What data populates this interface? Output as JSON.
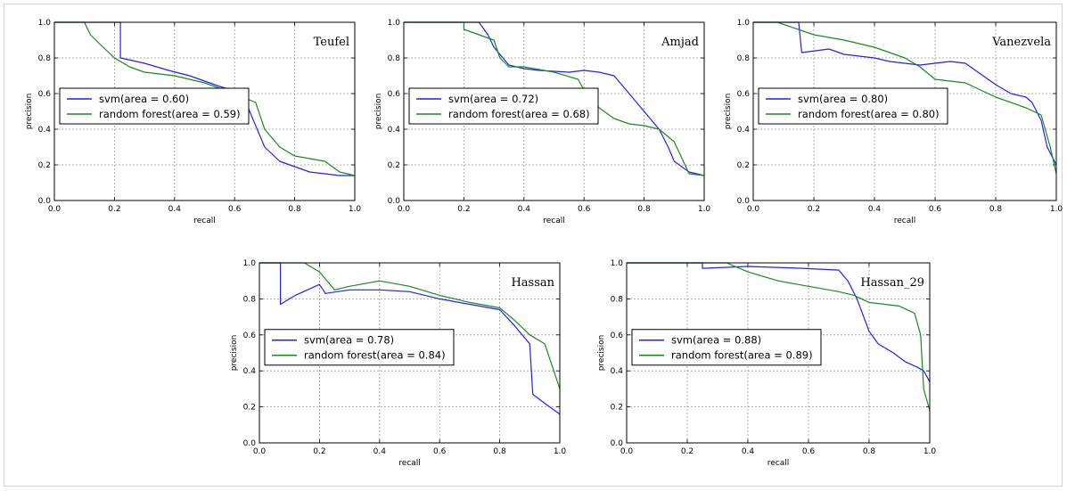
{
  "chart_data": [
    {
      "type": "line",
      "title": "Teufel",
      "xlabel": "recall",
      "ylabel": "precision",
      "xlim": [
        0,
        1
      ],
      "ylim": [
        0,
        1
      ],
      "x_ticks": [
        "0.0",
        "0.2",
        "0.4",
        "0.6",
        "0.8",
        "1.0"
      ],
      "y_ticks": [
        "0.0",
        "0.2",
        "0.4",
        "0.6",
        "0.8",
        "1.0"
      ],
      "grid": true,
      "legend": "center-left",
      "series": [
        {
          "name": "svm(area = 0.60)",
          "color": "#1f1fff",
          "points": [
            [
              0,
              1.0
            ],
            [
              0.22,
              1.0
            ],
            [
              0.22,
              0.8
            ],
            [
              0.3,
              0.77
            ],
            [
              0.38,
              0.73
            ],
            [
              0.45,
              0.7
            ],
            [
              0.55,
              0.64
            ],
            [
              0.63,
              0.6
            ],
            [
              0.65,
              0.5
            ],
            [
              0.7,
              0.3
            ],
            [
              0.75,
              0.22
            ],
            [
              0.8,
              0.19
            ],
            [
              0.85,
              0.16
            ],
            [
              0.9,
              0.15
            ],
            [
              0.95,
              0.14
            ],
            [
              1.0,
              0.14
            ]
          ]
        },
        {
          "name": "random forest(area = 0.59)",
          "color": "#1a8a1a",
          "points": [
            [
              0,
              1.0
            ],
            [
              0.1,
              1.0
            ],
            [
              0.12,
              0.93
            ],
            [
              0.15,
              0.88
            ],
            [
              0.2,
              0.8
            ],
            [
              0.25,
              0.75
            ],
            [
              0.3,
              0.72
            ],
            [
              0.4,
              0.7
            ],
            [
              0.5,
              0.66
            ],
            [
              0.6,
              0.6
            ],
            [
              0.67,
              0.55
            ],
            [
              0.7,
              0.4
            ],
            [
              0.75,
              0.3
            ],
            [
              0.8,
              0.25
            ],
            [
              0.9,
              0.22
            ],
            [
              0.95,
              0.16
            ],
            [
              1.0,
              0.14
            ]
          ]
        }
      ]
    },
    {
      "type": "line",
      "title": "Amjad",
      "xlabel": "recall",
      "ylabel": "precision",
      "xlim": [
        0,
        1
      ],
      "ylim": [
        0,
        1
      ],
      "x_ticks": [
        "0.0",
        "0.2",
        "0.4",
        "0.6",
        "0.8",
        "1.0"
      ],
      "y_ticks": [
        "0.0",
        "0.2",
        "0.4",
        "0.6",
        "0.8",
        "1.0"
      ],
      "grid": true,
      "legend": "center-left",
      "series": [
        {
          "name": "svm(area = 0.72)",
          "color": "#1f1fff",
          "points": [
            [
              0,
              1.0
            ],
            [
              0.25,
              1.0
            ],
            [
              0.28,
              0.93
            ],
            [
              0.3,
              0.86
            ],
            [
              0.35,
              0.76
            ],
            [
              0.4,
              0.74
            ],
            [
              0.45,
              0.73
            ],
            [
              0.55,
              0.72
            ],
            [
              0.6,
              0.73
            ],
            [
              0.65,
              0.72
            ],
            [
              0.7,
              0.7
            ],
            [
              0.75,
              0.6
            ],
            [
              0.8,
              0.5
            ],
            [
              0.85,
              0.4
            ],
            [
              0.88,
              0.3
            ],
            [
              0.9,
              0.22
            ],
            [
              0.95,
              0.16
            ],
            [
              1.0,
              0.14
            ]
          ]
        },
        {
          "name": "random forest(area = 0.68)",
          "color": "#1a8a1a",
          "points": [
            [
              0,
              1.0
            ],
            [
              0.2,
              1.0
            ],
            [
              0.2,
              0.96
            ],
            [
              0.3,
              0.9
            ],
            [
              0.32,
              0.8
            ],
            [
              0.35,
              0.75
            ],
            [
              0.4,
              0.75
            ],
            [
              0.5,
              0.72
            ],
            [
              0.58,
              0.68
            ],
            [
              0.6,
              0.62
            ],
            [
              0.65,
              0.52
            ],
            [
              0.7,
              0.46
            ],
            [
              0.75,
              0.43
            ],
            [
              0.8,
              0.42
            ],
            [
              0.85,
              0.4
            ],
            [
              0.9,
              0.33
            ],
            [
              0.95,
              0.15
            ],
            [
              1.0,
              0.14
            ]
          ]
        }
      ]
    },
    {
      "type": "line",
      "title": "Vanezvela",
      "xlabel": "recall",
      "ylabel": "precision",
      "xlim": [
        0,
        1
      ],
      "ylim": [
        0,
        1
      ],
      "x_ticks": [
        "0.0",
        "0.2",
        "0.4",
        "0.6",
        "0.8",
        "1.0"
      ],
      "y_ticks": [
        "0.0",
        "0.2",
        "0.4",
        "0.6",
        "0.8",
        "1.0"
      ],
      "grid": true,
      "legend": "center-left",
      "series": [
        {
          "name": "svm(area = 0.80)",
          "color": "#1f1fff",
          "points": [
            [
              0,
              1.0
            ],
            [
              0.15,
              1.0
            ],
            [
              0.16,
              0.83
            ],
            [
              0.25,
              0.85
            ],
            [
              0.3,
              0.82
            ],
            [
              0.4,
              0.8
            ],
            [
              0.45,
              0.78
            ],
            [
              0.55,
              0.76
            ],
            [
              0.65,
              0.78
            ],
            [
              0.7,
              0.77
            ],
            [
              0.8,
              0.65
            ],
            [
              0.85,
              0.6
            ],
            [
              0.9,
              0.58
            ],
            [
              0.92,
              0.55
            ],
            [
              0.95,
              0.45
            ],
            [
              0.97,
              0.3
            ],
            [
              1.0,
              0.2
            ]
          ]
        },
        {
          "name": "random forest(area = 0.80)",
          "color": "#1a8a1a",
          "points": [
            [
              0,
              1.0
            ],
            [
              0.08,
              1.0
            ],
            [
              0.2,
              0.93
            ],
            [
              0.3,
              0.9
            ],
            [
              0.4,
              0.86
            ],
            [
              0.5,
              0.8
            ],
            [
              0.55,
              0.75
            ],
            [
              0.6,
              0.68
            ],
            [
              0.7,
              0.66
            ],
            [
              0.8,
              0.58
            ],
            [
              0.9,
              0.52
            ],
            [
              0.95,
              0.48
            ],
            [
              0.98,
              0.3
            ],
            [
              1.0,
              0.15
            ]
          ]
        }
      ]
    },
    {
      "type": "line",
      "title": "Hassan",
      "xlabel": "recall",
      "ylabel": "precision",
      "xlim": [
        0,
        1
      ],
      "ylim": [
        0,
        1
      ],
      "x_ticks": [
        "0.0",
        "0.2",
        "0.4",
        "0.6",
        "0.8",
        "1.0"
      ],
      "y_ticks": [
        "0.0",
        "0.2",
        "0.4",
        "0.6",
        "0.8",
        "1.0"
      ],
      "grid": true,
      "legend": "center-left",
      "series": [
        {
          "name": "svm(area = 0.78)",
          "color": "#1f1fff",
          "points": [
            [
              0,
              1.0
            ],
            [
              0.07,
              1.0
            ],
            [
              0.07,
              0.77
            ],
            [
              0.12,
              0.82
            ],
            [
              0.2,
              0.88
            ],
            [
              0.22,
              0.83
            ],
            [
              0.3,
              0.85
            ],
            [
              0.4,
              0.85
            ],
            [
              0.5,
              0.84
            ],
            [
              0.6,
              0.8
            ],
            [
              0.7,
              0.77
            ],
            [
              0.8,
              0.74
            ],
            [
              0.85,
              0.65
            ],
            [
              0.9,
              0.55
            ],
            [
              0.91,
              0.27
            ],
            [
              0.95,
              0.22
            ],
            [
              1.0,
              0.16
            ]
          ]
        },
        {
          "name": "random forest(area = 0.84)",
          "color": "#1a8a1a",
          "points": [
            [
              0,
              1.0
            ],
            [
              0.15,
              1.0
            ],
            [
              0.2,
              0.95
            ],
            [
              0.25,
              0.85
            ],
            [
              0.3,
              0.87
            ],
            [
              0.4,
              0.9
            ],
            [
              0.5,
              0.87
            ],
            [
              0.6,
              0.82
            ],
            [
              0.7,
              0.78
            ],
            [
              0.8,
              0.75
            ],
            [
              0.85,
              0.68
            ],
            [
              0.9,
              0.6
            ],
            [
              0.95,
              0.55
            ],
            [
              0.98,
              0.4
            ],
            [
              1.0,
              0.3
            ]
          ]
        }
      ]
    },
    {
      "type": "line",
      "title": "Hassan_29",
      "xlabel": "recall",
      "ylabel": "precision",
      "xlim": [
        0,
        1
      ],
      "ylim": [
        0,
        1
      ],
      "x_ticks": [
        "0.0",
        "0.2",
        "0.4",
        "0.6",
        "0.8",
        "1.0"
      ],
      "y_ticks": [
        "0.0",
        "0.2",
        "0.4",
        "0.6",
        "0.8",
        "1.0"
      ],
      "grid": true,
      "legend": "center-left",
      "series": [
        {
          "name": "svm(area = 0.88)",
          "color": "#1f1fff",
          "points": [
            [
              0,
              1.0
            ],
            [
              0.25,
              1.0
            ],
            [
              0.25,
              0.97
            ],
            [
              0.4,
              0.98
            ],
            [
              0.58,
              0.97
            ],
            [
              0.7,
              0.96
            ],
            [
              0.73,
              0.9
            ],
            [
              0.76,
              0.8
            ],
            [
              0.8,
              0.62
            ],
            [
              0.83,
              0.55
            ],
            [
              0.88,
              0.5
            ],
            [
              0.92,
              0.45
            ],
            [
              0.96,
              0.42
            ],
            [
              0.98,
              0.4
            ],
            [
              1.0,
              0.34
            ]
          ]
        },
        {
          "name": "random forest(area = 0.89)",
          "color": "#1a8a1a",
          "points": [
            [
              0,
              1.0
            ],
            [
              0.33,
              1.0
            ],
            [
              0.4,
              0.95
            ],
            [
              0.5,
              0.9
            ],
            [
              0.6,
              0.87
            ],
            [
              0.7,
              0.84
            ],
            [
              0.75,
              0.82
            ],
            [
              0.8,
              0.78
            ],
            [
              0.9,
              0.76
            ],
            [
              0.95,
              0.72
            ],
            [
              0.97,
              0.6
            ],
            [
              0.98,
              0.3
            ],
            [
              1.0,
              0.18
            ]
          ]
        }
      ]
    }
  ]
}
